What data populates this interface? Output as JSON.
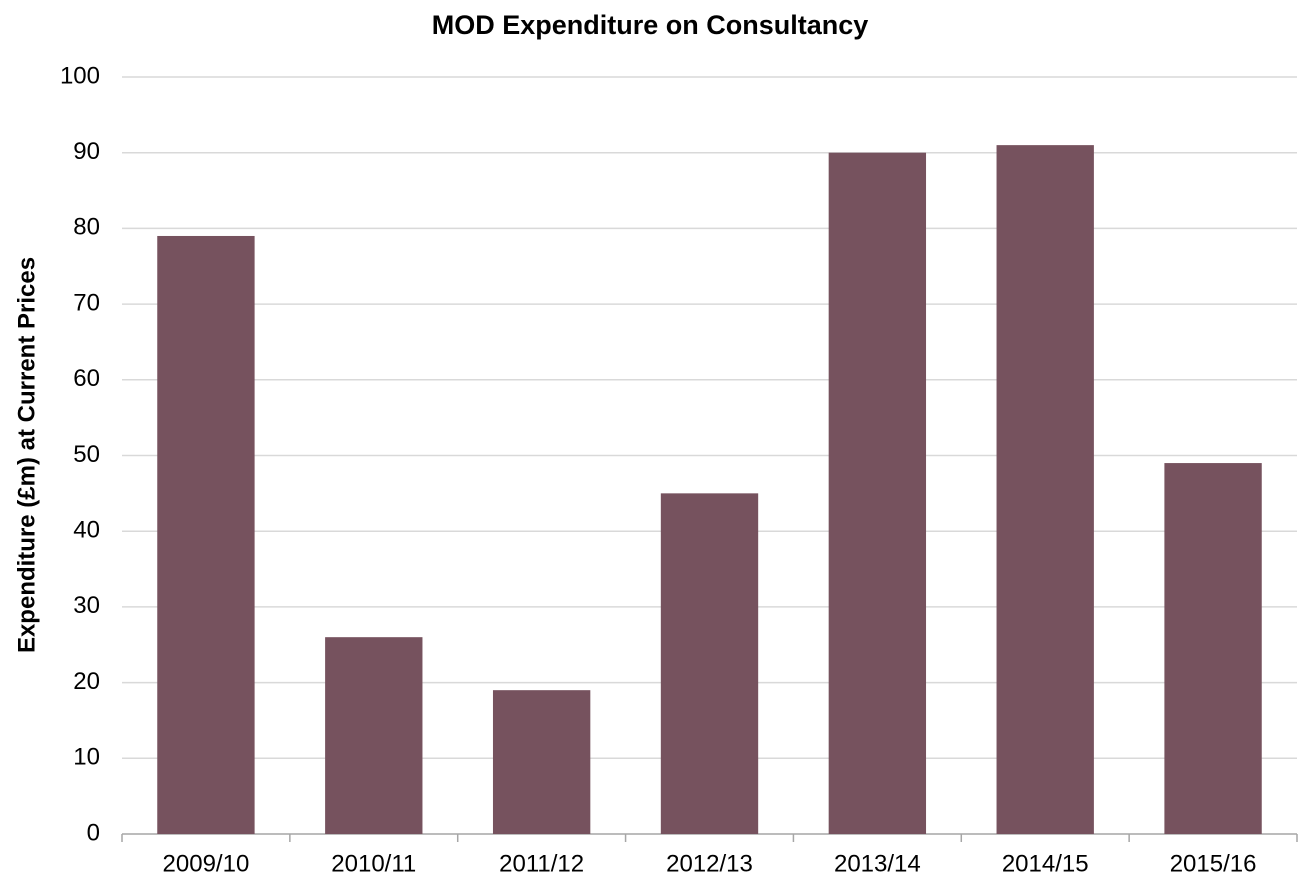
{
  "chart_data": {
    "type": "bar",
    "title": "MOD Expenditure on Consultancy",
    "y_label": "Expenditure (£m) at Current Prices",
    "categories": [
      "2009/10",
      "2010/11",
      "2011/12",
      "2012/13",
      "2013/14",
      "2014/15",
      "2015/16"
    ],
    "values": [
      79,
      26,
      19,
      45,
      90,
      91,
      49
    ],
    "color": "#76525e",
    "ylim": [
      0,
      100
    ],
    "yticks": [
      0,
      10,
      20,
      30,
      40,
      50,
      60,
      70,
      80,
      90,
      100
    ],
    "grid": true
  }
}
